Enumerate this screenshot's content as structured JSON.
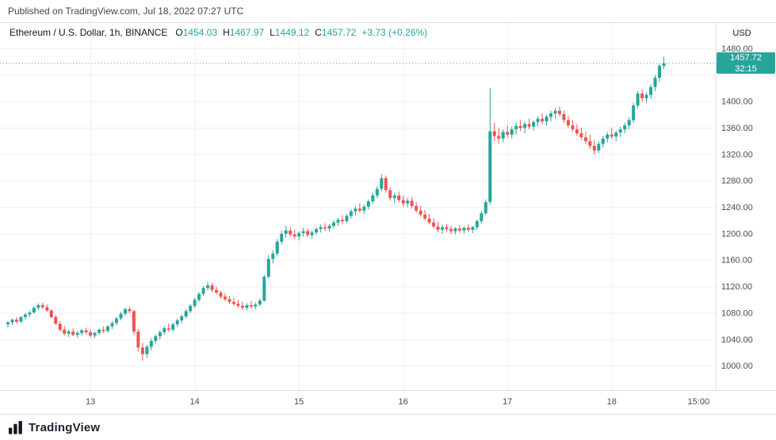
{
  "published_bar": {
    "text": "Published on TradingView.com, Jul 18, 2022 07:27 UTC"
  },
  "header": {
    "symbol": "Ethereum / U.S. Dollar, 1h, BINANCE",
    "o": {
      "label": "O",
      "value": "1454.03"
    },
    "h": {
      "label": "H",
      "value": "1467.97"
    },
    "l": {
      "label": "L",
      "value": "1449.12"
    },
    "c": {
      "label": "C",
      "value": "1457.72"
    },
    "change": "+3.73 (+0.26%)"
  },
  "price_label": {
    "price": "1457.72",
    "countdown": "32:15"
  },
  "footer": {
    "brand": "TradingView"
  },
  "colors": {
    "up": "#26a69a",
    "down": "#ef5350",
    "grid": "#eef0f3",
    "axis_line": "#dcdee1",
    "axis_text": "#4a4c52",
    "header_text": "#131722"
  },
  "chart_data": {
    "type": "candlestick",
    "title": "Ethereum / U.S. Dollar",
    "interval": "1h",
    "exchange": "BINANCE",
    "last": {
      "open": 1454.03,
      "high": 1467.97,
      "low": 1449.12,
      "close": 1457.72,
      "change_abs": "+3.73",
      "change_pct": "+0.26%"
    },
    "current_price": 1457.72,
    "y_axis": {
      "currency": "USD",
      "grid_values": [
        1480,
        1440,
        1400,
        1360,
        1320,
        1280,
        1240,
        1200,
        1160,
        1120,
        1080,
        1040,
        1000
      ],
      "labels": [
        {
          "value": 1480,
          "text": "1480.00"
        },
        {
          "value": 1400,
          "text": "1400.00"
        },
        {
          "value": 1360,
          "text": "1360.00"
        },
        {
          "value": 1320,
          "text": "1320.00"
        },
        {
          "value": 1280,
          "text": "1280.00"
        },
        {
          "value": 1240,
          "text": "1240.00"
        },
        {
          "value": 1200,
          "text": "1200.00"
        },
        {
          "value": 1160,
          "text": "1160.00"
        },
        {
          "value": 1120,
          "text": "1120.00"
        },
        {
          "value": 1080,
          "text": "1080.00"
        },
        {
          "value": 1040,
          "text": "1040.00"
        },
        {
          "value": 1000,
          "text": "1000.00"
        }
      ],
      "visible_range": [
        966,
        1520
      ]
    },
    "x_axis": {
      "ticks": [
        {
          "index": 19,
          "label": "13"
        },
        {
          "index": 43,
          "label": "14"
        },
        {
          "index": 67,
          "label": "15"
        },
        {
          "index": 91,
          "label": "16"
        },
        {
          "index": 115,
          "label": "17"
        },
        {
          "index": 139,
          "label": "18"
        },
        {
          "index": 159,
          "label": "15:00",
          "grid": false
        }
      ]
    },
    "candles": [
      [
        1063,
        1068,
        1058,
        1066
      ],
      [
        1066,
        1072,
        1062,
        1070
      ],
      [
        1070,
        1074,
        1064,
        1067
      ],
      [
        1067,
        1076,
        1065,
        1074
      ],
      [
        1074,
        1080,
        1070,
        1078
      ],
      [
        1078,
        1084,
        1074,
        1081
      ],
      [
        1081,
        1090,
        1079,
        1088
      ],
      [
        1088,
        1095,
        1085,
        1092
      ],
      [
        1092,
        1096,
        1086,
        1089
      ],
      [
        1089,
        1093,
        1082,
        1084
      ],
      [
        1084,
        1086,
        1072,
        1074
      ],
      [
        1074,
        1077,
        1062,
        1064
      ],
      [
        1064,
        1068,
        1052,
        1055
      ],
      [
        1055,
        1060,
        1046,
        1049
      ],
      [
        1049,
        1055,
        1044,
        1052
      ],
      [
        1052,
        1057,
        1045,
        1047
      ],
      [
        1047,
        1053,
        1043,
        1050
      ],
      [
        1050,
        1056,
        1046,
        1054
      ],
      [
        1054,
        1058,
        1048,
        1051
      ],
      [
        1051,
        1055,
        1044,
        1046
      ],
      [
        1046,
        1052,
        1042,
        1050
      ],
      [
        1050,
        1057,
        1047,
        1055
      ],
      [
        1055,
        1060,
        1050,
        1053
      ],
      [
        1053,
        1062,
        1050,
        1060
      ],
      [
        1060,
        1068,
        1056,
        1065
      ],
      [
        1065,
        1074,
        1062,
        1072
      ],
      [
        1072,
        1082,
        1069,
        1079
      ],
      [
        1079,
        1088,
        1076,
        1086
      ],
      [
        1086,
        1090,
        1080,
        1083
      ],
      [
        1083,
        1085,
        1048,
        1052
      ],
      [
        1052,
        1056,
        1022,
        1028
      ],
      [
        1028,
        1035,
        1008,
        1018
      ],
      [
        1018,
        1032,
        1012,
        1029
      ],
      [
        1029,
        1042,
        1024,
        1038
      ],
      [
        1038,
        1048,
        1034,
        1045
      ],
      [
        1045,
        1054,
        1040,
        1051
      ],
      [
        1051,
        1060,
        1047,
        1057
      ],
      [
        1057,
        1064,
        1052,
        1055
      ],
      [
        1055,
        1066,
        1052,
        1063
      ],
      [
        1063,
        1072,
        1059,
        1069
      ],
      [
        1069,
        1078,
        1065,
        1075
      ],
      [
        1075,
        1086,
        1072,
        1083
      ],
      [
        1083,
        1094,
        1080,
        1091
      ],
      [
        1091,
        1103,
        1088,
        1100
      ],
      [
        1100,
        1112,
        1097,
        1109
      ],
      [
        1109,
        1121,
        1106,
        1118
      ],
      [
        1118,
        1127,
        1114,
        1122
      ],
      [
        1122,
        1126,
        1112,
        1115
      ],
      [
        1115,
        1120,
        1108,
        1111
      ],
      [
        1111,
        1114,
        1102,
        1105
      ],
      [
        1105,
        1110,
        1098,
        1101
      ],
      [
        1101,
        1106,
        1094,
        1097
      ],
      [
        1097,
        1103,
        1091,
        1094
      ],
      [
        1094,
        1100,
        1088,
        1091
      ],
      [
        1091,
        1097,
        1085,
        1088
      ],
      [
        1088,
        1095,
        1084,
        1092
      ],
      [
        1092,
        1098,
        1087,
        1090
      ],
      [
        1090,
        1096,
        1086,
        1093
      ],
      [
        1093,
        1102,
        1090,
        1099
      ],
      [
        1099,
        1138,
        1097,
        1135
      ],
      [
        1135,
        1168,
        1132,
        1162
      ],
      [
        1162,
        1175,
        1155,
        1170
      ],
      [
        1170,
        1192,
        1166,
        1188
      ],
      [
        1188,
        1205,
        1184,
        1200
      ],
      [
        1200,
        1212,
        1194,
        1205
      ],
      [
        1205,
        1210,
        1196,
        1199
      ],
      [
        1199,
        1206,
        1192,
        1196
      ],
      [
        1196,
        1204,
        1190,
        1201
      ],
      [
        1201,
        1209,
        1196,
        1204
      ],
      [
        1204,
        1208,
        1195,
        1198
      ],
      [
        1198,
        1205,
        1192,
        1202
      ],
      [
        1202,
        1210,
        1198,
        1207
      ],
      [
        1207,
        1214,
        1202,
        1210
      ],
      [
        1210,
        1216,
        1204,
        1208
      ],
      [
        1208,
        1215,
        1203,
        1212
      ],
      [
        1212,
        1220,
        1208,
        1217
      ],
      [
        1217,
        1224,
        1212,
        1221
      ],
      [
        1221,
        1228,
        1215,
        1219
      ],
      [
        1219,
        1230,
        1216,
        1227
      ],
      [
        1227,
        1237,
        1223,
        1234
      ],
      [
        1234,
        1242,
        1228,
        1238
      ],
      [
        1238,
        1246,
        1232,
        1235
      ],
      [
        1235,
        1244,
        1230,
        1241
      ],
      [
        1241,
        1252,
        1237,
        1249
      ],
      [
        1249,
        1262,
        1245,
        1258
      ],
      [
        1258,
        1272,
        1254,
        1268
      ],
      [
        1268,
        1290,
        1264,
        1284
      ],
      [
        1284,
        1288,
        1262,
        1266
      ],
      [
        1266,
        1270,
        1250,
        1254
      ],
      [
        1254,
        1262,
        1246,
        1258
      ],
      [
        1258,
        1264,
        1248,
        1251
      ],
      [
        1251,
        1258,
        1242,
        1246
      ],
      [
        1246,
        1254,
        1240,
        1250
      ],
      [
        1250,
        1256,
        1238,
        1242
      ],
      [
        1242,
        1248,
        1232,
        1235
      ],
      [
        1235,
        1242,
        1226,
        1229
      ],
      [
        1229,
        1236,
        1220,
        1223
      ],
      [
        1223,
        1230,
        1214,
        1217
      ],
      [
        1217,
        1224,
        1208,
        1211
      ],
      [
        1211,
        1218,
        1202,
        1206
      ],
      [
        1206,
        1214,
        1200,
        1210
      ],
      [
        1210,
        1215,
        1203,
        1207
      ],
      [
        1207,
        1212,
        1200,
        1204
      ],
      [
        1204,
        1210,
        1199,
        1208
      ],
      [
        1208,
        1213,
        1202,
        1205
      ],
      [
        1205,
        1211,
        1200,
        1209
      ],
      [
        1209,
        1214,
        1203,
        1206
      ],
      [
        1206,
        1212,
        1201,
        1210
      ],
      [
        1210,
        1222,
        1206,
        1219
      ],
      [
        1219,
        1235,
        1215,
        1231
      ],
      [
        1231,
        1252,
        1228,
        1248
      ],
      [
        1248,
        1420,
        1244,
        1355
      ],
      [
        1355,
        1368,
        1340,
        1348
      ],
      [
        1348,
        1360,
        1336,
        1344
      ],
      [
        1344,
        1358,
        1338,
        1354
      ],
      [
        1354,
        1364,
        1346,
        1350
      ],
      [
        1350,
        1362,
        1344,
        1358
      ],
      [
        1358,
        1368,
        1350,
        1363
      ],
      [
        1363,
        1372,
        1355,
        1360
      ],
      [
        1360,
        1370,
        1352,
        1366
      ],
      [
        1366,
        1374,
        1358,
        1362
      ],
      [
        1362,
        1372,
        1356,
        1369
      ],
      [
        1369,
        1378,
        1362,
        1374
      ],
      [
        1374,
        1382,
        1366,
        1370
      ],
      [
        1370,
        1380,
        1364,
        1377
      ],
      [
        1377,
        1386,
        1370,
        1382
      ],
      [
        1382,
        1390,
        1374,
        1386
      ],
      [
        1386,
        1392,
        1378,
        1381
      ],
      [
        1381,
        1386,
        1368,
        1372
      ],
      [
        1372,
        1378,
        1360,
        1364
      ],
      [
        1364,
        1372,
        1354,
        1358
      ],
      [
        1358,
        1366,
        1348,
        1352
      ],
      [
        1352,
        1360,
        1342,
        1346
      ],
      [
        1346,
        1354,
        1336,
        1340
      ],
      [
        1340,
        1350,
        1328,
        1333
      ],
      [
        1333,
        1342,
        1320,
        1326
      ],
      [
        1326,
        1340,
        1322,
        1336
      ],
      [
        1336,
        1348,
        1330,
        1344
      ],
      [
        1344,
        1354,
        1338,
        1350
      ],
      [
        1350,
        1360,
        1344,
        1347
      ],
      [
        1347,
        1356,
        1340,
        1353
      ],
      [
        1353,
        1362,
        1346,
        1358
      ],
      [
        1358,
        1368,
        1352,
        1364
      ],
      [
        1364,
        1376,
        1358,
        1372
      ],
      [
        1372,
        1398,
        1368,
        1394
      ],
      [
        1394,
        1416,
        1390,
        1412
      ],
      [
        1412,
        1418,
        1400,
        1405
      ],
      [
        1405,
        1414,
        1398,
        1410
      ],
      [
        1410,
        1426,
        1404,
        1422
      ],
      [
        1422,
        1440,
        1416,
        1436
      ],
      [
        1436,
        1458,
        1430,
        1454
      ],
      [
        1454.03,
        1467.97,
        1449.12,
        1457.72
      ]
    ]
  }
}
